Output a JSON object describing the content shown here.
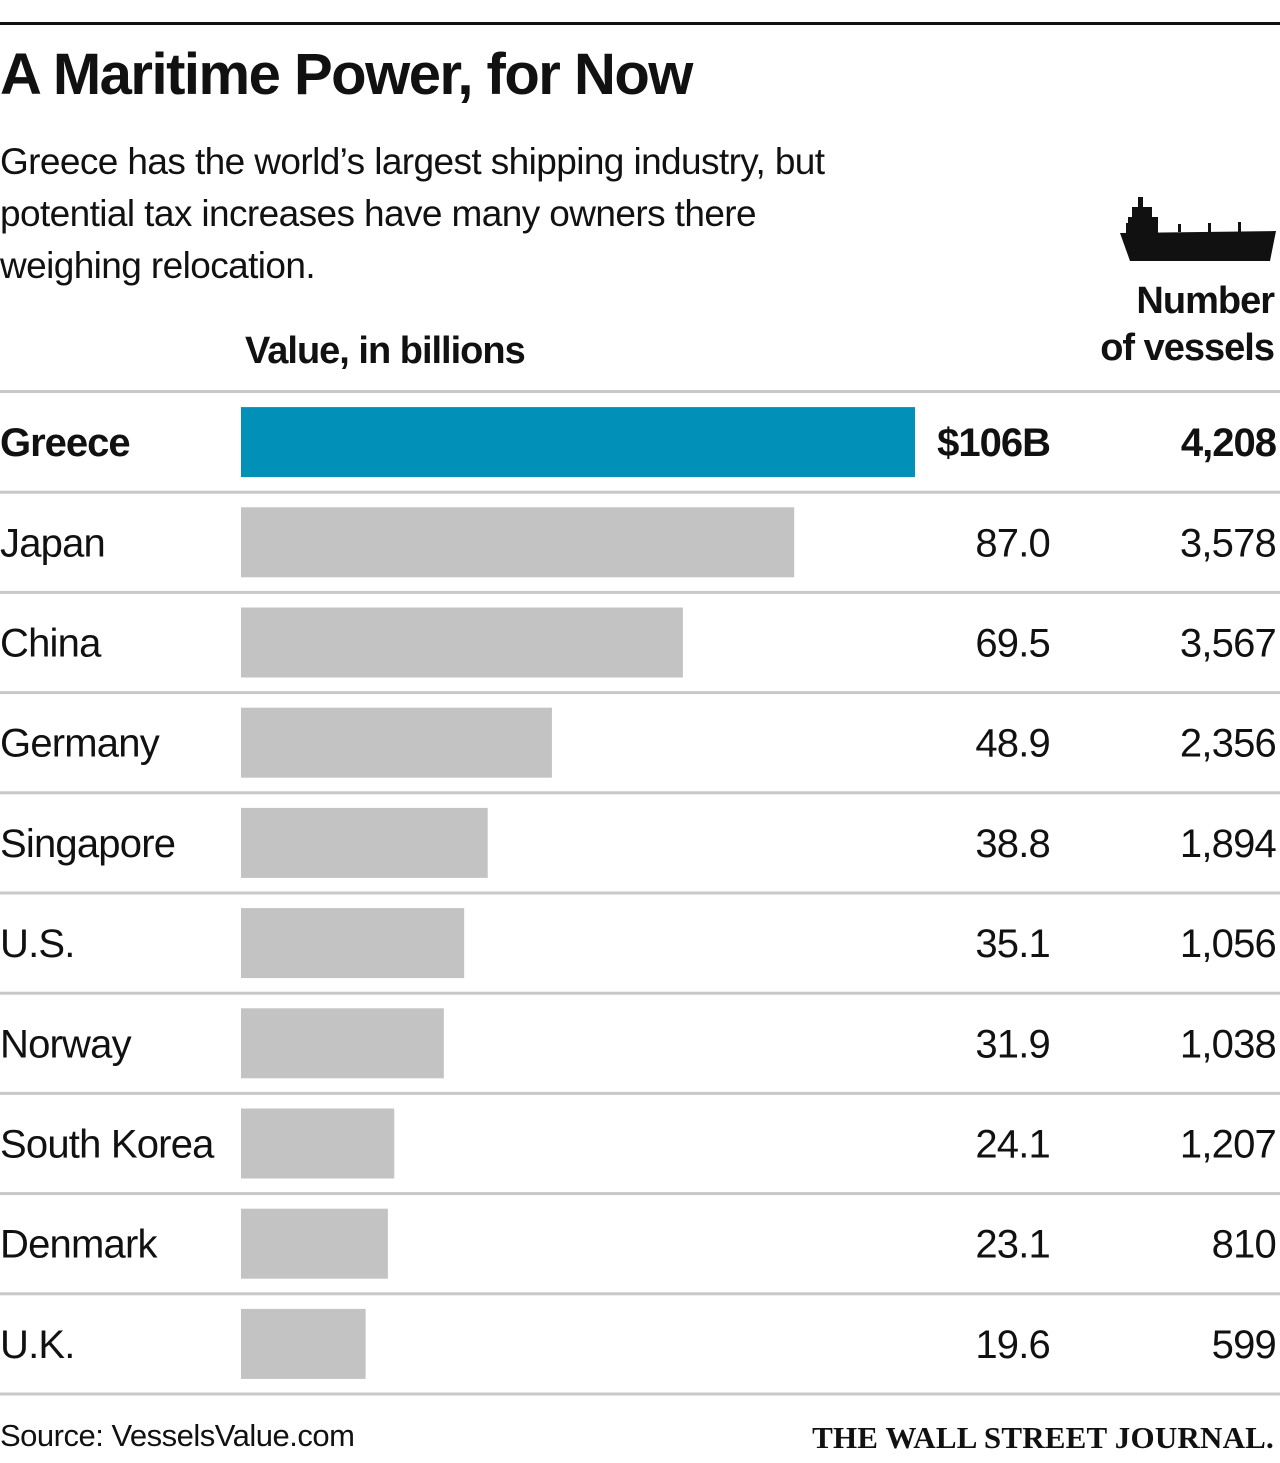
{
  "chart_data": {
    "type": "bar",
    "title": "A Maritime Power, for Now",
    "subtitle": "Greece has the world’s largest shipping industry, but potential tax increases have many owners there weighing relocation.",
    "value_header": "Value, in billions",
    "vessels_header_line1": "Number",
    "vessels_header_line2": "of vessels",
    "icon": "cargo-ship-icon",
    "highlight_color": "#0090b8",
    "bar_color": "#c3c3c3",
    "rule_color": "#c8c8c8",
    "ylim": [
      0,
      106
    ],
    "categories": [
      "Greece",
      "Japan",
      "China",
      "Germany",
      "Singapore",
      "U.S.",
      "Norway",
      "South Korea",
      "Denmark",
      "U.K."
    ],
    "values": [
      106,
      87.0,
      69.5,
      48.9,
      38.8,
      35.1,
      31.9,
      24.1,
      23.1,
      19.6
    ],
    "value_labels": [
      "$106B",
      "87.0",
      "69.5",
      "48.9",
      "38.8",
      "35.1",
      "31.9",
      "24.1",
      "23.1",
      "19.6"
    ],
    "vessels": [
      4208,
      3578,
      3567,
      2356,
      1894,
      1056,
      1038,
      1207,
      810,
      599
    ],
    "vessel_labels": [
      "4,208",
      "3,578",
      "3,567",
      "2,356",
      "1,894",
      "1,056",
      "1,038",
      "1,207",
      "810",
      "599"
    ],
    "highlight_index": 0
  },
  "footer": {
    "source": "Source: VesselsValue.com",
    "credit": "THE WALL STREET JOURNAL."
  }
}
